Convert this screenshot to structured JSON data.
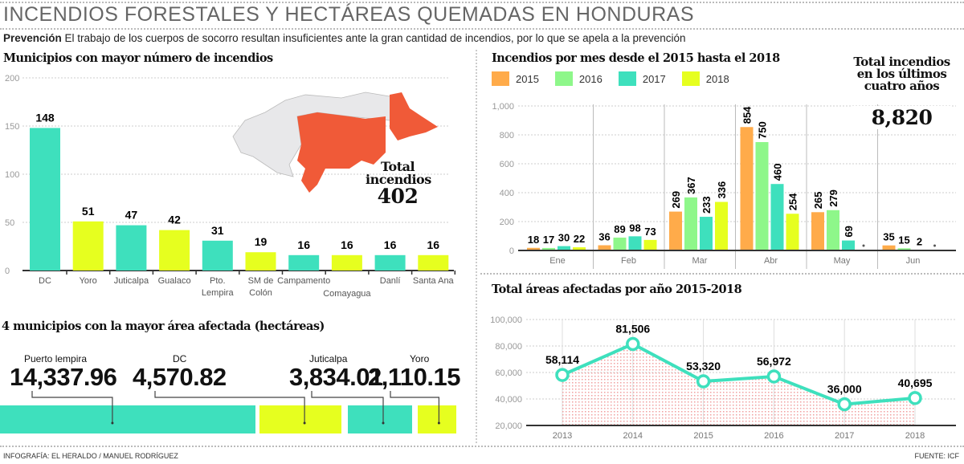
{
  "header": {
    "title": "INCENDIOS FORESTALES Y HECTÁREAS QUEMADAS EN HONDURAS",
    "subtitle_lead": "Prevención",
    "subtitle_text": " El trabajo de los cuerpos de socorro resultan insuficientes ante la gran cantidad de incendios, por lo que se apela a la prevención"
  },
  "map": {
    "total_label": "Total incendios",
    "total_value": "402",
    "highlight_color": "#f05a38"
  },
  "total_box": {
    "label": "Total incendios en los últimos cuatro años",
    "value": "8,820"
  },
  "colors": {
    "teal": "#3ee0bd",
    "yellow": "#e6ff1f",
    "orange": "#ffab4a",
    "green": "#8ef78a",
    "line": "#3ee0bd"
  },
  "chart_data": [
    {
      "type": "bar",
      "title": "Municipios con mayor número de incendios",
      "categories": [
        "DC",
        "Yoro",
        "Juticalpa",
        "Gualaco",
        "Pto. Lempira",
        "SM de Colón",
        "Campamento",
        "Comayagua",
        "Danlí",
        "Santa Ana"
      ],
      "values": [
        148,
        51,
        47,
        42,
        31,
        19,
        16,
        16,
        16,
        16
      ],
      "ylim": [
        0,
        200
      ],
      "yticks": [
        "0",
        "50",
        "100",
        "150",
        "200"
      ],
      "grid": true
    },
    {
      "type": "bar",
      "title": "Incendios por mes desde el 2015 hasta el 2018",
      "categories": [
        "Ene",
        "Feb",
        "Mar",
        "Abr",
        "May",
        "Jun"
      ],
      "series": [
        {
          "name": "2015",
          "values": [
            18,
            36,
            269,
            854,
            265,
            35
          ]
        },
        {
          "name": "2016",
          "values": [
            17,
            89,
            367,
            750,
            279,
            15
          ]
        },
        {
          "name": "2017",
          "values": [
            30,
            98,
            233,
            460,
            69,
            2
          ]
        },
        {
          "name": "2018",
          "values": [
            22,
            73,
            336,
            254,
            null,
            null
          ]
        }
      ],
      "ylim": [
        0,
        1000
      ],
      "yticks": [
        "0",
        "200",
        "400",
        "600",
        "800",
        "1,000"
      ],
      "legend": "top-left",
      "grid": true
    },
    {
      "type": "area",
      "title": "Total áreas afectadas por año 2015-2018",
      "x": [
        "2013",
        "2014",
        "2015",
        "2016",
        "2017",
        "2018"
      ],
      "values": [
        58114,
        81506,
        53320,
        56972,
        36000,
        40695
      ],
      "labels": [
        "58,114",
        "81,506",
        "53,320",
        "56,972",
        "36,000",
        "40,695"
      ],
      "ylim": [
        20000,
        100000
      ],
      "yticks": [
        "20,000",
        "40,000",
        "60,000",
        "80,000",
        "100,000"
      ],
      "grid": true
    },
    {
      "type": "bar",
      "title": "4 municipios con la mayor área afectada (hectáreas)",
      "categories": [
        "Puerto lempira",
        "DC",
        "Juticalpa",
        "Yoro"
      ],
      "values": [
        14337.96,
        4570.82,
        3834.01,
        2110.15
      ],
      "labels": [
        "14,337.96",
        "4,570.82",
        "3,834.01",
        "2,110.15"
      ]
    }
  ],
  "footer": {
    "credit": "INFOGRAFÍA: EL HERALDO / MANUEL RODRÍGUEZ",
    "source": "FUENTE: ICF"
  }
}
